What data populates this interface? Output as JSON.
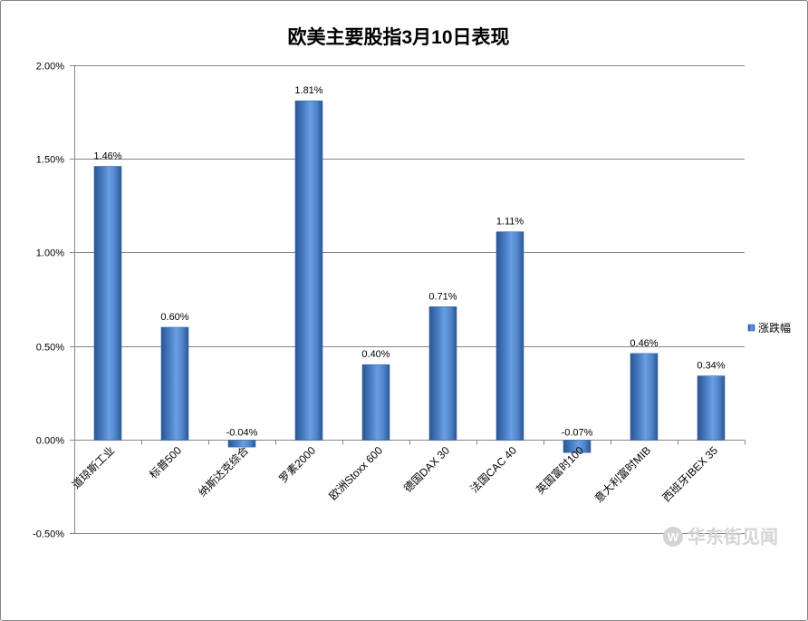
{
  "chart_data": {
    "type": "bar",
    "title": "欧美主要股指3月10日表现",
    "categories": [
      "道琼斯工业",
      "标普500",
      "纳斯达克综合",
      "罗素2000",
      "欧洲Stoxx 600",
      "德国DAX 30",
      "法国CAC 40",
      "英国富时100",
      "意大利富时MIB",
      "西班牙IBEX 35"
    ],
    "series": [
      {
        "name": "涨跌幅",
        "values": [
          1.46,
          0.6,
          -0.04,
          1.81,
          0.4,
          0.71,
          1.11,
          -0.07,
          0.46,
          0.34
        ],
        "labels": [
          "1.46%",
          "0.60%",
          "-0.04%",
          "1.81%",
          "0.40%",
          "0.71%",
          "1.11%",
          "-0.07%",
          "0.46%",
          "0.34%"
        ]
      }
    ],
    "y_ticks": [
      {
        "value": 2.0,
        "label": "2.00%"
      },
      {
        "value": 1.5,
        "label": "1.50%"
      },
      {
        "value": 1.0,
        "label": "1.00%"
      },
      {
        "value": 0.5,
        "label": "0.50%"
      },
      {
        "value": 0.0,
        "label": "0.00%"
      },
      {
        "value": -0.5,
        "label": "-0.50%"
      }
    ],
    "ylim": [
      -0.5,
      2.0
    ],
    "xlabel": "",
    "ylabel": "",
    "grid": true,
    "legend_position": "right"
  },
  "colors": {
    "bar_dark": "#2a5591",
    "bar_mid": "#4d82c8",
    "bar_light": "#6b9fe2",
    "bar_edge": "#3a6aa8",
    "gridline": "#868686",
    "frame": "#868686",
    "watermark": "#d4d4d4"
  },
  "watermark": {
    "icon": "w-circle-logo-icon",
    "logo_letter": "W",
    "text": "华东街见闻"
  }
}
